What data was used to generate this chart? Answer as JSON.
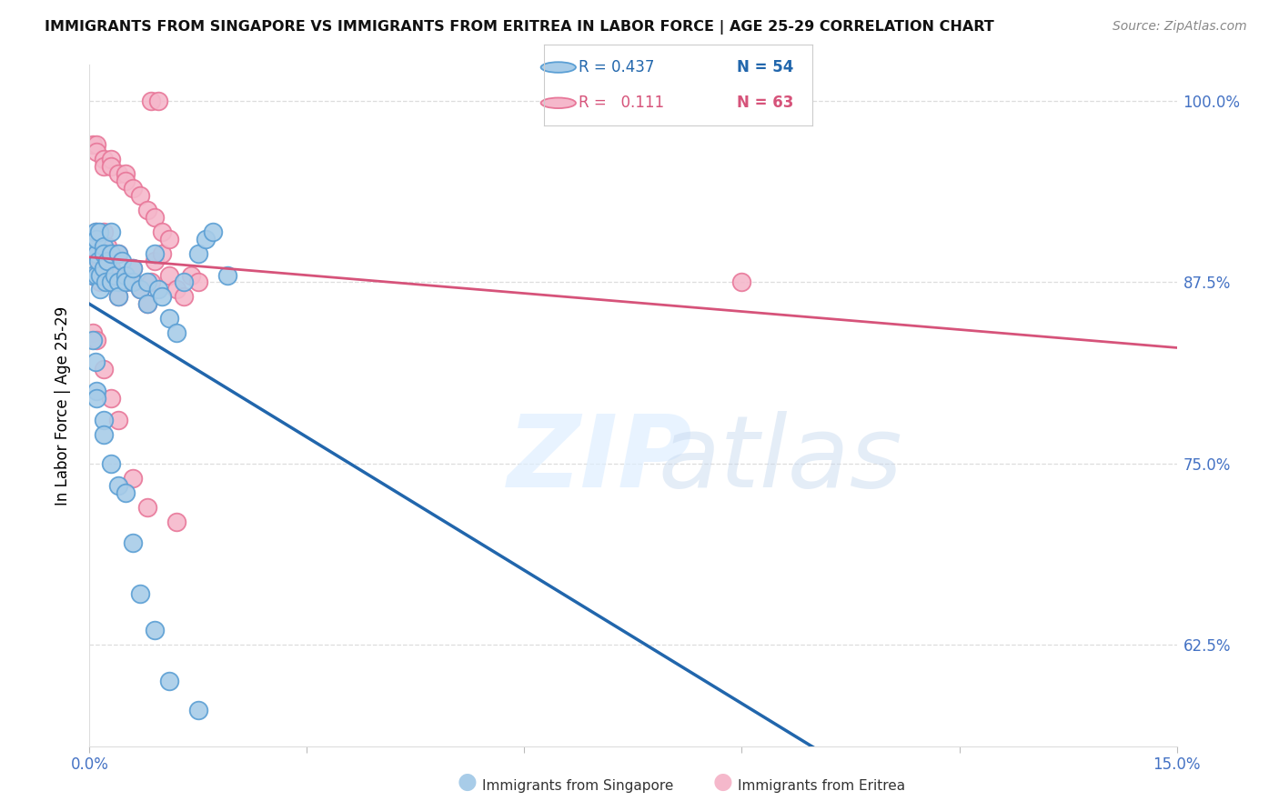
{
  "title": "IMMIGRANTS FROM SINGAPORE VS IMMIGRANTS FROM ERITREA IN LABOR FORCE | AGE 25-29 CORRELATION CHART",
  "source": "Source: ZipAtlas.com",
  "ylabel": "In Labor Force | Age 25-29",
  "yticks": [
    0.625,
    0.75,
    0.875,
    1.0
  ],
  "ytick_labels": [
    "62.5%",
    "75.0%",
    "87.5%",
    "100.0%"
  ],
  "xlim": [
    0.0,
    0.15
  ],
  "ylim": [
    0.555,
    1.025
  ],
  "singapore_color": "#a8cce8",
  "eritrea_color": "#f5b8cb",
  "singapore_edge": "#5b9fd4",
  "eritrea_edge": "#e87799",
  "trend_singapore_color": "#2166ac",
  "trend_eritrea_color": "#d6537a",
  "legend_r_singapore": "R = 0.437",
  "legend_n_singapore": "N = 54",
  "legend_r_eritrea": "R =   0.111",
  "legend_n_eritrea": "N = 63",
  "singapore_x": [
    0.0005,
    0.0005,
    0.0008,
    0.001,
    0.001,
    0.001,
    0.0012,
    0.0013,
    0.0015,
    0.0015,
    0.002,
    0.002,
    0.002,
    0.0022,
    0.0025,
    0.003,
    0.003,
    0.003,
    0.0035,
    0.004,
    0.004,
    0.004,
    0.0045,
    0.005,
    0.005,
    0.006,
    0.006,
    0.007,
    0.008,
    0.008,
    0.009,
    0.0095,
    0.01,
    0.011,
    0.012,
    0.013,
    0.015,
    0.016,
    0.017,
    0.019,
    0.0005,
    0.0008,
    0.001,
    0.001,
    0.002,
    0.002,
    0.003,
    0.004,
    0.005,
    0.006,
    0.007,
    0.009,
    0.011,
    0.015
  ],
  "singapore_y": [
    0.88,
    0.9,
    0.91,
    0.895,
    0.905,
    0.88,
    0.89,
    0.91,
    0.87,
    0.88,
    0.9,
    0.895,
    0.885,
    0.875,
    0.89,
    0.91,
    0.895,
    0.875,
    0.88,
    0.895,
    0.875,
    0.865,
    0.89,
    0.88,
    0.875,
    0.875,
    0.885,
    0.87,
    0.86,
    0.875,
    0.895,
    0.87,
    0.865,
    0.85,
    0.84,
    0.875,
    0.895,
    0.905,
    0.91,
    0.88,
    0.835,
    0.82,
    0.8,
    0.795,
    0.78,
    0.77,
    0.75,
    0.735,
    0.73,
    0.695,
    0.66,
    0.635,
    0.6,
    0.58
  ],
  "eritrea_x": [
    0.0005,
    0.0005,
    0.0008,
    0.001,
    0.001,
    0.001,
    0.0012,
    0.0013,
    0.0015,
    0.0015,
    0.002,
    0.002,
    0.002,
    0.0022,
    0.0025,
    0.003,
    0.003,
    0.003,
    0.0035,
    0.004,
    0.004,
    0.004,
    0.005,
    0.005,
    0.006,
    0.006,
    0.007,
    0.008,
    0.0085,
    0.009,
    0.01,
    0.011,
    0.012,
    0.013,
    0.014,
    0.0005,
    0.001,
    0.001,
    0.002,
    0.002,
    0.003,
    0.003,
    0.004,
    0.005,
    0.005,
    0.006,
    0.007,
    0.008,
    0.009,
    0.01,
    0.011,
    0.0085,
    0.0095,
    0.0005,
    0.001,
    0.002,
    0.003,
    0.004,
    0.006,
    0.008,
    0.012,
    0.015,
    0.09
  ],
  "eritrea_y": [
    0.88,
    0.895,
    0.905,
    0.895,
    0.91,
    0.88,
    0.9,
    0.895,
    0.885,
    0.875,
    0.91,
    0.895,
    0.885,
    0.875,
    0.9,
    0.895,
    0.885,
    0.875,
    0.88,
    0.895,
    0.875,
    0.865,
    0.88,
    0.875,
    0.875,
    0.885,
    0.87,
    0.86,
    0.875,
    0.89,
    0.895,
    0.88,
    0.87,
    0.865,
    0.88,
    0.97,
    0.97,
    0.965,
    0.96,
    0.955,
    0.96,
    0.955,
    0.95,
    0.95,
    0.945,
    0.94,
    0.935,
    0.925,
    0.92,
    0.91,
    0.905,
    1.0,
    1.0,
    0.84,
    0.835,
    0.815,
    0.795,
    0.78,
    0.74,
    0.72,
    0.71,
    0.875,
    0.875
  ]
}
